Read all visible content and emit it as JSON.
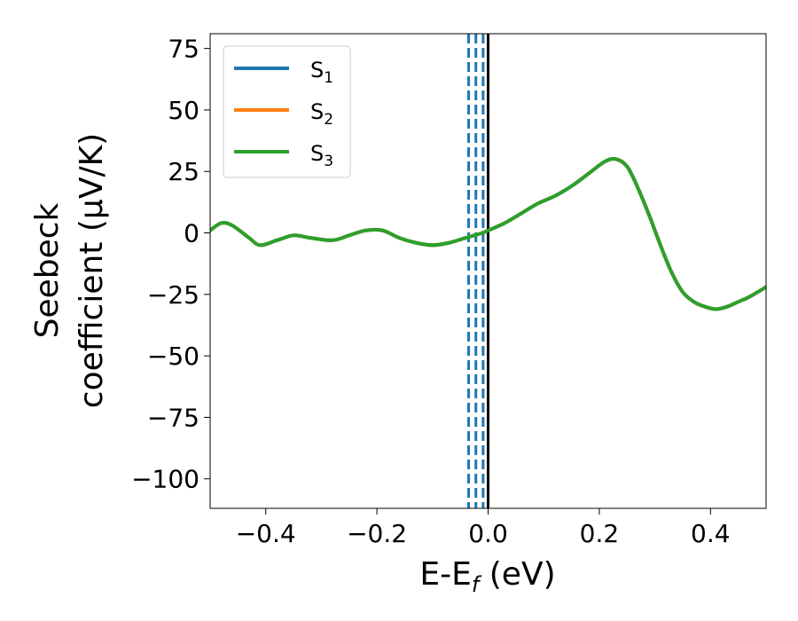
{
  "chart_data": {
    "type": "line",
    "xlabel": {
      "main": "E-E",
      "sub": "f",
      "unit": " (eV)"
    },
    "ylabel": {
      "line1": "Seebeck",
      "line2": "coefficient  (μV/K)"
    },
    "xlim": [
      -0.5,
      0.5
    ],
    "ylim": [
      -112,
      81
    ],
    "x_ticks": [
      -0.4,
      -0.2,
      0.0,
      0.2,
      0.4
    ],
    "x_tick_labels": [
      "−0.4",
      "−0.2",
      "0.0",
      "0.2",
      "0.4"
    ],
    "y_ticks": [
      75,
      50,
      25,
      0,
      -25,
      -50,
      -75,
      -100
    ],
    "y_tick_labels": [
      "75",
      "50",
      "25",
      "0",
      "−25",
      "−50",
      "−75",
      "−100"
    ],
    "grid": false,
    "legend_position": "top-left",
    "vertical_lines": [
      {
        "x": -0.035,
        "style": "dashed",
        "color": "#1f77b4"
      },
      {
        "x": -0.022,
        "style": "dashed",
        "color": "#1f77b4"
      },
      {
        "x": -0.009,
        "style": "dashed",
        "color": "#1f77b4"
      },
      {
        "x": 0.0,
        "style": "solid",
        "color": "#000000"
      }
    ],
    "series": [
      {
        "name": "S",
        "sub": "1",
        "color": "#1f77b4",
        "x": [
          -0.5,
          -0.48,
          -0.46,
          -0.43,
          -0.41,
          -0.38,
          -0.35,
          -0.32,
          -0.28,
          -0.25,
          -0.22,
          -0.19,
          -0.16,
          -0.13,
          -0.1,
          -0.07,
          -0.04,
          -0.01,
          0.0,
          0.03,
          0.06,
          0.09,
          0.12,
          0.15,
          0.18,
          0.21,
          0.23,
          0.25,
          0.27,
          0.29,
          0.31,
          0.33,
          0.35,
          0.37,
          0.39,
          0.41,
          0.43,
          0.45,
          0.47,
          0.5
        ],
        "y": [
          1,
          4,
          3,
          -2,
          -5,
          -3,
          -1,
          -2,
          -3,
          -1,
          1,
          1,
          -2,
          -4,
          -5,
          -4,
          -2,
          0,
          1,
          4,
          8,
          12,
          15,
          19,
          24,
          29,
          30,
          27,
          18,
          7,
          -5,
          -16,
          -24,
          -28,
          -30,
          -31,
          -30,
          -28,
          -26,
          -22
        ]
      },
      {
        "name": "S",
        "sub": "2",
        "color": "#ff7f0e",
        "x": [
          -0.5,
          -0.48,
          -0.46,
          -0.43,
          -0.41,
          -0.38,
          -0.35,
          -0.32,
          -0.28,
          -0.25,
          -0.22,
          -0.19,
          -0.16,
          -0.13,
          -0.1,
          -0.07,
          -0.04,
          -0.01,
          0.0,
          0.03,
          0.06,
          0.09,
          0.12,
          0.15,
          0.18,
          0.21,
          0.23,
          0.25,
          0.27,
          0.29,
          0.31,
          0.33,
          0.35,
          0.37,
          0.39,
          0.41,
          0.43,
          0.45,
          0.47,
          0.5
        ],
        "y": [
          1,
          4,
          3,
          -2,
          -5,
          -3,
          -1,
          -2,
          -3,
          -1,
          1,
          1,
          -2,
          -4,
          -5,
          -4,
          -2,
          0,
          1,
          4,
          8,
          12,
          15,
          19,
          24,
          29,
          30,
          27,
          18,
          7,
          -5,
          -16,
          -24,
          -28,
          -30,
          -31,
          -30,
          -28,
          -26,
          -22
        ]
      },
      {
        "name": "S",
        "sub": "3",
        "color": "#2ca02c",
        "x": [
          -0.5,
          -0.48,
          -0.46,
          -0.43,
          -0.41,
          -0.38,
          -0.35,
          -0.32,
          -0.28,
          -0.25,
          -0.22,
          -0.19,
          -0.16,
          -0.13,
          -0.1,
          -0.07,
          -0.04,
          -0.01,
          0.0,
          0.03,
          0.06,
          0.09,
          0.12,
          0.15,
          0.18,
          0.21,
          0.23,
          0.25,
          0.27,
          0.29,
          0.31,
          0.33,
          0.35,
          0.37,
          0.39,
          0.41,
          0.43,
          0.45,
          0.47,
          0.5
        ],
        "y": [
          1,
          4,
          3,
          -2,
          -5,
          -3,
          -1,
          -2,
          -3,
          -1,
          1,
          1,
          -2,
          -4,
          -5,
          -4,
          -2,
          0,
          1,
          4,
          8,
          12,
          15,
          19,
          24,
          29,
          30,
          27,
          18,
          7,
          -5,
          -16,
          -24,
          -28,
          -30,
          -31,
          -30,
          -28,
          -26,
          -22
        ]
      }
    ]
  }
}
